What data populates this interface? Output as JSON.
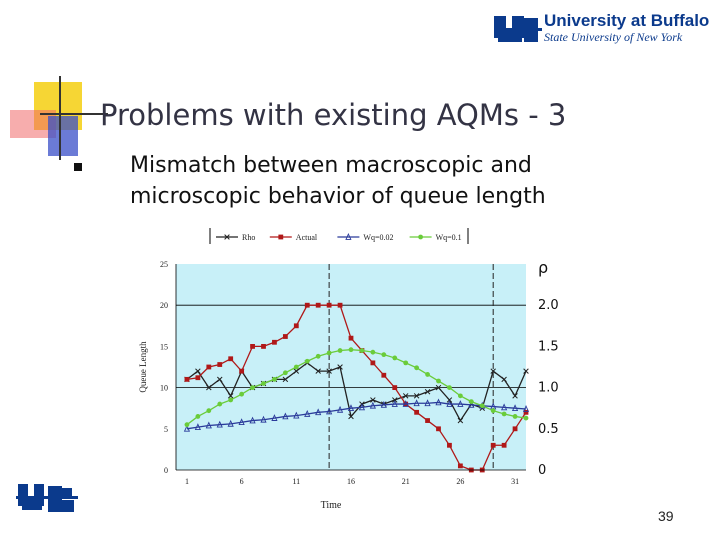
{
  "header": {
    "university_name": "University at Buffalo",
    "university_sub": "State University of New York"
  },
  "slide": {
    "title": "Problems with existing AQMs - 3",
    "bullet": "Mismatch between macroscopic and microscopic behavior of queue length",
    "page_number": "39"
  },
  "colors": {
    "title": "#333344",
    "brand_blue": "#0b3a8c",
    "deco_yellow": "#f5d21e",
    "deco_red": "#f06a6a",
    "deco_blue": "#3a4fc8",
    "plot_bg": "#c8f0f8"
  },
  "chart_data": {
    "type": "line",
    "xlabel": "Time",
    "ylabel": "Queue Length",
    "x_ticks": [
      "1",
      "6",
      "11",
      "16",
      "21",
      "26",
      "31"
    ],
    "y_ticks": [
      "0",
      "5",
      "10",
      "15",
      "20",
      "25"
    ],
    "ylim": [
      0,
      25
    ],
    "xlim": [
      0,
      32
    ],
    "right_axis_label": "ρ",
    "right_ticks": [
      "0",
      "0.5",
      "1.0",
      "1.5",
      "2.0"
    ],
    "grid": "horizontal at 10 and 20",
    "vlines": [
      14,
      29
    ],
    "legend_position": "top",
    "x": [
      1,
      2,
      3,
      4,
      5,
      6,
      7,
      8,
      9,
      10,
      11,
      12,
      13,
      14,
      15,
      16,
      17,
      18,
      19,
      20,
      21,
      22,
      23,
      24,
      25,
      26,
      27,
      28,
      29,
      30,
      31,
      32
    ],
    "series": [
      {
        "name": "Rho",
        "color": "#222222",
        "marker": "x",
        "values": [
          11,
          12,
          10,
          11,
          9,
          12,
          10,
          10.5,
          11,
          11,
          12,
          13,
          12,
          12,
          12.5,
          6.5,
          8,
          8.5,
          8,
          8.5,
          9,
          9,
          9.5,
          10,
          8.5,
          6,
          8,
          7.5,
          12,
          11,
          9,
          12
        ]
      },
      {
        "name": "Actual",
        "color": "#b01818",
        "marker": "square",
        "values": [
          11,
          11.2,
          12.5,
          12.8,
          13.5,
          12,
          15,
          15,
          15.5,
          16.2,
          17.5,
          20,
          20,
          20,
          20,
          16,
          14.5,
          13,
          11.5,
          10,
          8,
          7,
          6,
          5,
          3,
          0.5,
          0,
          0,
          3,
          3,
          5,
          7
        ]
      },
      {
        "name": "Wq=0.02",
        "color": "#2a3a9a",
        "marker": "triangle",
        "values": [
          5,
          5.2,
          5.4,
          5.5,
          5.6,
          5.8,
          6,
          6.1,
          6.3,
          6.5,
          6.6,
          6.8,
          7,
          7.1,
          7.3,
          7.5,
          7.6,
          7.8,
          7.9,
          8,
          8,
          8.1,
          8.1,
          8.2,
          8,
          8,
          7.9,
          7.8,
          7.7,
          7.6,
          7.5,
          7.4
        ]
      },
      {
        "name": "Wq=0.1",
        "color": "#6acc3a",
        "marker": "circle",
        "values": [
          5.5,
          6.5,
          7.2,
          8,
          8.5,
          9.2,
          10,
          10.5,
          11,
          11.8,
          12.5,
          13.2,
          13.8,
          14.2,
          14.5,
          14.6,
          14.5,
          14.3,
          14,
          13.6,
          13,
          12.4,
          11.6,
          10.8,
          10,
          9,
          8.3,
          7.8,
          7.2,
          6.8,
          6.5,
          6.3
        ]
      }
    ]
  }
}
